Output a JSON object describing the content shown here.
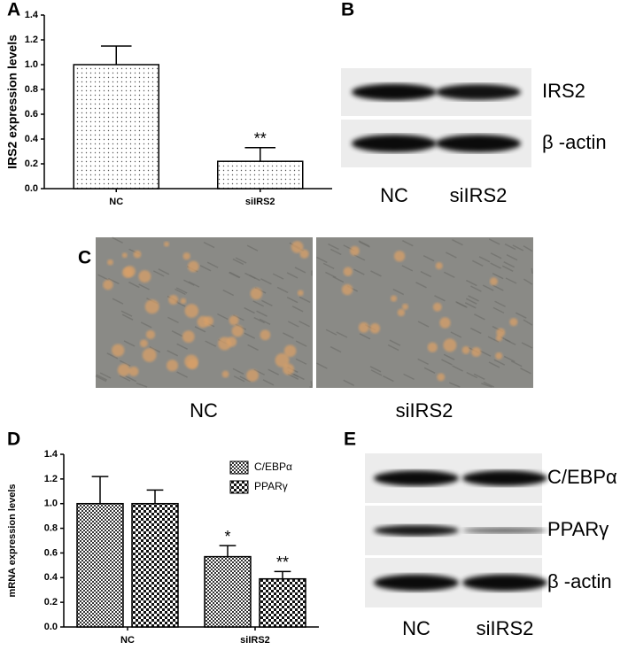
{
  "chart_data": [
    {
      "type": "bar",
      "label": "A",
      "ylabel": "IRS2 expression levels",
      "categories": [
        "NC",
        "siIRS2"
      ],
      "values": [
        1.0,
        0.22
      ],
      "errors": [
        0.15,
        0.11
      ],
      "annotations": [
        null,
        "**"
      ],
      "ylim": [
        0,
        1.4
      ],
      "yticks": [
        {
          "value": 0,
          "label": "0.0"
        },
        0.2,
        0.4,
        0.6,
        0.8,
        {
          "value": 1,
          "label": "1.0"
        },
        1.2,
        1.4
      ]
    },
    {
      "type": "bar",
      "label": "D",
      "ylabel": "mRNA expression levels",
      "categories": [
        "NC",
        "siIRS2"
      ],
      "series": [
        {
          "name": "C/EBPα",
          "values": [
            1.0,
            0.57
          ],
          "errors": [
            0.22,
            0.09
          ],
          "annotations": [
            null,
            "*"
          ]
        },
        {
          "name": "PPARγ",
          "values": [
            1.0,
            0.39
          ],
          "errors": [
            0.11,
            0.06
          ],
          "annotations": [
            null,
            "**"
          ]
        }
      ],
      "ylim": [
        0,
        1.4
      ],
      "yticks": [
        {
          "value": 0,
          "label": "0.0"
        },
        0.2,
        0.4,
        0.6,
        0.8,
        {
          "value": 1,
          "label": "1.0"
        },
        1.2,
        1.4
      ]
    }
  ],
  "blots": [
    {
      "label": "B",
      "rows": [
        "IRS2",
        "β -actin"
      ],
      "lanes": [
        "NC",
        "siIRS2"
      ]
    },
    {
      "label": "E",
      "rows": [
        "C/EBPα",
        "PPARγ",
        "β -actin"
      ],
      "lanes": [
        "NC",
        "siIRS2"
      ]
    }
  ],
  "micrographs": {
    "label": "C",
    "captions": [
      "NC",
      "siIRS2"
    ]
  }
}
